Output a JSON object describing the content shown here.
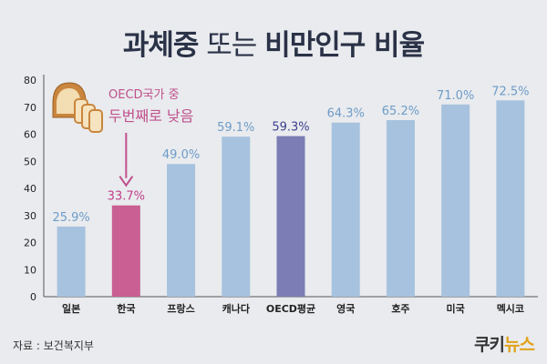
{
  "title": {
    "bold_part1": "과체중",
    "normal_part": " 또는 ",
    "bold_part2": "비만인구 비율"
  },
  "annotation": {
    "line1": "OECD국가 중",
    "line2": "두번째로 낮음"
  },
  "source": "자료 : 보건복지부",
  "brand": {
    "part1": "쿠키",
    "part2": "뉴스"
  },
  "colors": {
    "bar_default": "#a7c2de",
    "bar_highlight": "#c95f92",
    "bar_average": "#7b7db4",
    "label_default": "#6e9cc8",
    "label_highlight": "#c0408a",
    "label_average": "#3b3f8c",
    "annotation": "#c0508d"
  },
  "chart_data": {
    "type": "bar",
    "title": "과체중 또는 비만인구 비율",
    "categories": [
      "일본",
      "한국",
      "프랑스",
      "캐나다",
      "OECD평균",
      "영국",
      "호주",
      "미국",
      "멕시코"
    ],
    "values": [
      25.9,
      33.7,
      49.0,
      59.1,
      59.3,
      64.3,
      65.2,
      71.0,
      72.5
    ],
    "value_labels": [
      "25.9%",
      "33.7%",
      "49.0%",
      "59.1%",
      "59.3%",
      "64.3%",
      "65.2%",
      "71.0%",
      "72.5%"
    ],
    "highlight": [
      "default",
      "highlight",
      "default",
      "default",
      "average",
      "default",
      "default",
      "default",
      "default"
    ],
    "yticks": [
      "0",
      "10",
      "20",
      "30",
      "40",
      "50",
      "60",
      "70",
      "80"
    ],
    "ylim": [
      0,
      80
    ],
    "xlabel": "",
    "ylabel": "",
    "grid": false,
    "legend": "none"
  }
}
